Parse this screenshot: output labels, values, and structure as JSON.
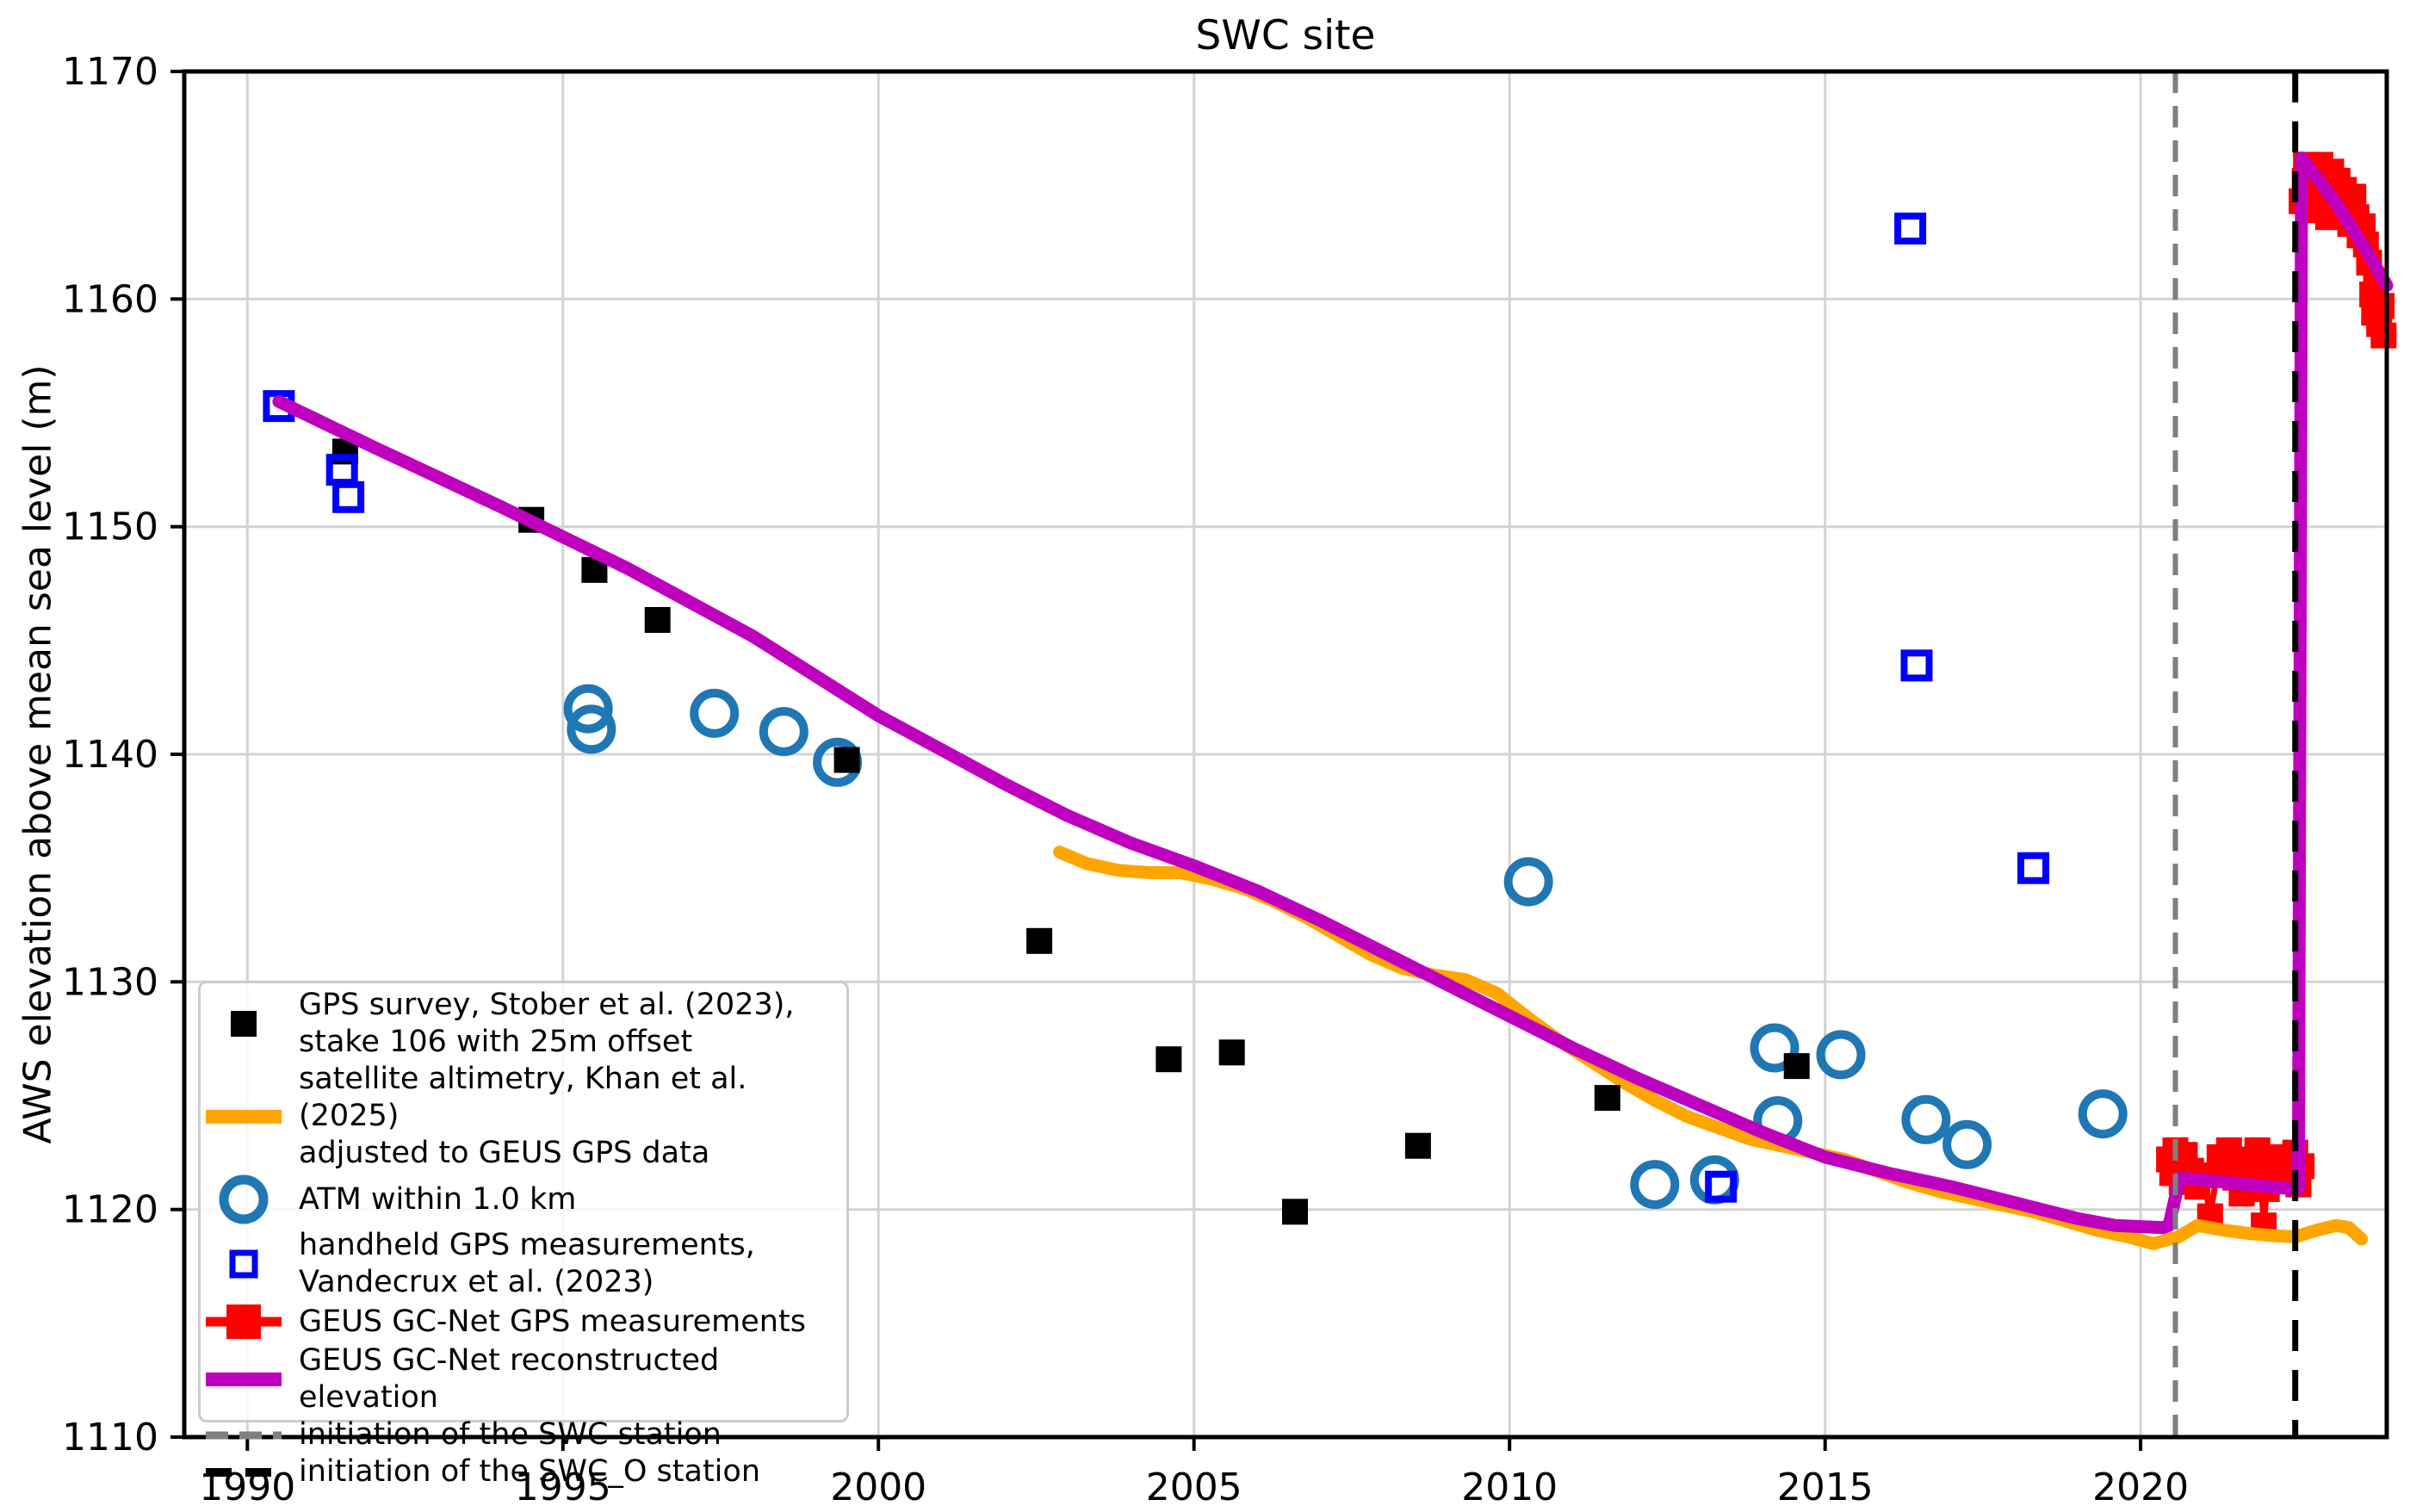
{
  "chart_data": {
    "type": "composite line+scatter",
    "title": "SWC site",
    "xlabel": "",
    "ylabel": "AWS elevation above mean sea level (m)",
    "xlim": [
      1989.0,
      2023.9
    ],
    "ylim": [
      1110,
      1170
    ],
    "xticks": [
      1990,
      1995,
      2000,
      2005,
      2010,
      2015,
      2020
    ],
    "yticks": [
      1110,
      1120,
      1130,
      1140,
      1150,
      1160,
      1170
    ],
    "grid": true,
    "grid_color": "#d3d3d3",
    "legend_position": "lower left",
    "series": [
      {
        "id": "atm",
        "label": "ATM within 1.0 km",
        "type": "scatter",
        "marker": "circle-open",
        "color": "#1f77b4",
        "marker_size": 57,
        "marker_stroke": 10,
        "points": [
          [
            1995.4,
            1142.0
          ],
          [
            1995.45,
            1141.1
          ],
          [
            1997.4,
            1141.8
          ],
          [
            1998.5,
            1141.0
          ],
          [
            1999.35,
            1139.65
          ],
          [
            2010.3,
            1134.4
          ],
          [
            2012.3,
            1121.1
          ],
          [
            2013.25,
            1121.3
          ],
          [
            2014.2,
            1127.1
          ],
          [
            2014.25,
            1123.9
          ],
          [
            2015.25,
            1126.8
          ],
          [
            2016.6,
            1123.95
          ],
          [
            2017.25,
            1122.85
          ],
          [
            2019.4,
            1124.2
          ]
        ]
      },
      {
        "id": "gcnet_gps",
        "label": "GEUS GC-Net GPS measurements",
        "type": "line+scatter",
        "marker": "square-filled",
        "color": "#ff0000",
        "line_width": 7,
        "marker_size": 30,
        "points": [
          [
            2020.45,
            1122.2
          ],
          [
            2020.5,
            1121.6
          ],
          [
            2020.55,
            1122.6
          ],
          [
            2020.6,
            1121.9
          ],
          [
            2020.65,
            1121.2
          ],
          [
            2020.7,
            1122.4
          ],
          [
            2020.8,
            1121.7
          ],
          [
            2020.9,
            1121.0
          ],
          [
            2021.0,
            1121.5
          ],
          [
            2021.1,
            1119.7
          ],
          [
            2021.25,
            1122.3
          ],
          [
            2021.3,
            1121.8
          ],
          [
            2021.4,
            1122.6
          ],
          [
            2021.45,
            1122.0
          ],
          [
            2021.5,
            1121.4
          ],
          [
            2021.6,
            1120.7
          ],
          [
            2021.7,
            1122.2
          ],
          [
            2021.85,
            1122.6
          ],
          [
            2021.9,
            1121.8
          ],
          [
            2021.95,
            1119.3
          ],
          [
            2022.0,
            1120.9
          ],
          [
            2022.1,
            1122.3
          ],
          [
            2022.2,
            1121.7
          ],
          [
            2022.3,
            1122.1
          ],
          [
            2022.4,
            1121.4
          ],
          [
            2022.45,
            1122.5
          ],
          [
            2022.5,
            1121.1
          ],
          [
            2022.55,
            1121.9
          ],
          [
            2022.55,
            1164.3
          ],
          [
            2022.6,
            1165.2
          ],
          [
            2022.62,
            1165.9
          ],
          [
            2022.67,
            1163.9
          ],
          [
            2022.72,
            1165.4
          ],
          [
            2022.78,
            1164.4
          ],
          [
            2022.85,
            1165.9
          ],
          [
            2022.92,
            1165.0
          ],
          [
            2022.97,
            1163.6
          ],
          [
            2023.02,
            1165.6
          ],
          [
            2023.07,
            1164.5
          ],
          [
            2023.12,
            1165.2
          ],
          [
            2023.17,
            1163.8
          ],
          [
            2023.22,
            1164.8
          ],
          [
            2023.27,
            1164.0
          ],
          [
            2023.32,
            1163.3
          ],
          [
            2023.37,
            1164.5
          ],
          [
            2023.42,
            1163.6
          ],
          [
            2023.47,
            1162.8
          ],
          [
            2023.52,
            1163.2
          ],
          [
            2023.57,
            1162.4
          ],
          [
            2023.62,
            1161.6
          ],
          [
            2023.67,
            1160.2
          ],
          [
            2023.7,
            1159.4
          ],
          [
            2023.73,
            1160.8
          ],
          [
            2023.78,
            1158.9
          ],
          [
            2023.82,
            1159.7
          ],
          [
            2023.85,
            1158.4
          ]
        ]
      },
      {
        "id": "altimetry",
        "label": "satellite altimetry, Khan et al. (2025)\nadjusted to GEUS GPS data",
        "type": "line",
        "color": "#ffa500",
        "line_width": 15,
        "points": [
          [
            2002.87,
            1135.7
          ],
          [
            2003.3,
            1135.2
          ],
          [
            2003.8,
            1134.9
          ],
          [
            2004.3,
            1134.8
          ],
          [
            2004.8,
            1134.8
          ],
          [
            2005.3,
            1134.5
          ],
          [
            2005.8,
            1134.1
          ],
          [
            2006.3,
            1133.5
          ],
          [
            2006.8,
            1132.8
          ],
          [
            2007.3,
            1132.0
          ],
          [
            2007.8,
            1131.2
          ],
          [
            2008.3,
            1130.6
          ],
          [
            2008.8,
            1130.3
          ],
          [
            2009.3,
            1130.1
          ],
          [
            2009.8,
            1129.5
          ],
          [
            2010.3,
            1128.4
          ],
          [
            2010.8,
            1127.4
          ],
          [
            2011.3,
            1126.5
          ],
          [
            2011.8,
            1125.6
          ],
          [
            2012.3,
            1124.8
          ],
          [
            2012.8,
            1124.1
          ],
          [
            2013.3,
            1123.6
          ],
          [
            2013.8,
            1123.1
          ],
          [
            2014.3,
            1122.8
          ],
          [
            2014.8,
            1122.5
          ],
          [
            2015.3,
            1122.2
          ],
          [
            2015.8,
            1121.7
          ],
          [
            2016.3,
            1121.2
          ],
          [
            2016.8,
            1120.8
          ],
          [
            2017.3,
            1120.5
          ],
          [
            2017.8,
            1120.2
          ],
          [
            2018.3,
            1119.9
          ],
          [
            2018.8,
            1119.5
          ],
          [
            2019.3,
            1119.1
          ],
          [
            2019.8,
            1118.8
          ],
          [
            2020.2,
            1118.5
          ],
          [
            2020.6,
            1118.8
          ],
          [
            2020.9,
            1119.3
          ],
          [
            2021.3,
            1119.1
          ],
          [
            2021.7,
            1118.95
          ],
          [
            2022.1,
            1118.85
          ],
          [
            2022.45,
            1118.8
          ],
          [
            2022.8,
            1119.1
          ],
          [
            2023.1,
            1119.3
          ],
          [
            2023.3,
            1119.2
          ],
          [
            2023.5,
            1118.7
          ]
        ]
      },
      {
        "id": "stober",
        "label": "GPS survey, Stober et al. (2023),\nstake 106 with 25m offset",
        "type": "scatter",
        "marker": "square-filled",
        "color": "#000000",
        "marker_size": 30,
        "points": [
          [
            1991.55,
            1153.3
          ],
          [
            1994.5,
            1150.3
          ],
          [
            1995.5,
            1148.1
          ],
          [
            1996.5,
            1145.9
          ],
          [
            1999.5,
            1139.75
          ],
          [
            2002.55,
            1131.8
          ],
          [
            2004.6,
            1126.6
          ],
          [
            2005.6,
            1126.9
          ],
          [
            2006.6,
            1119.9
          ],
          [
            2008.55,
            1122.8
          ],
          [
            2011.55,
            1124.9
          ],
          [
            2014.55,
            1126.3
          ]
        ]
      },
      {
        "id": "handheld",
        "label": "handheld GPS measurements,\nVandecrux et al. (2023)",
        "type": "scatter",
        "marker": "square-open",
        "color": "#0000ff",
        "marker_size": 29,
        "marker_stroke": 8,
        "points": [
          [
            1990.5,
            1155.3
          ],
          [
            1991.5,
            1152.5
          ],
          [
            1991.6,
            1151.3
          ],
          [
            2013.35,
            1121.0
          ],
          [
            2016.35,
            1163.1
          ],
          [
            2016.45,
            1143.9
          ],
          [
            2018.3,
            1135.0
          ]
        ]
      },
      {
        "id": "reconstructed",
        "label": "GEUS GC-Net reconstructed elevation",
        "type": "line",
        "color": "#bf00bf",
        "line_width": 15,
        "points": [
          [
            1990.5,
            1155.5
          ],
          [
            1992,
            1153.5
          ],
          [
            1994,
            1150.9
          ],
          [
            1996,
            1148.2
          ],
          [
            1998,
            1145.2
          ],
          [
            2000,
            1141.7
          ],
          [
            2001,
            1140.2
          ],
          [
            2002,
            1138.7
          ],
          [
            2003,
            1137.3
          ],
          [
            2004,
            1136.1
          ],
          [
            2005,
            1135.1
          ],
          [
            2006,
            1134.0
          ],
          [
            2007,
            1132.7
          ],
          [
            2008,
            1131.3
          ],
          [
            2009,
            1129.9
          ],
          [
            2010,
            1128.5
          ],
          [
            2011,
            1127.1
          ],
          [
            2012,
            1125.8
          ],
          [
            2013,
            1124.6
          ],
          [
            2014,
            1123.4
          ],
          [
            2015,
            1122.3
          ],
          [
            2016,
            1121.6
          ],
          [
            2017,
            1121.0
          ],
          [
            2018,
            1120.3
          ],
          [
            2019,
            1119.6
          ],
          [
            2019.6,
            1119.3
          ],
          [
            2020.35,
            1119.2
          ],
          [
            2020.45,
            1119.3
          ],
          [
            2020.62,
            1121.4
          ],
          [
            2021.5,
            1121.15
          ],
          [
            2022.42,
            1120.9
          ],
          [
            2022.5,
            1120.9
          ],
          [
            2022.55,
            1166.2
          ],
          [
            2022.8,
            1165.3
          ],
          [
            2023.1,
            1164.2
          ],
          [
            2023.4,
            1162.9
          ],
          [
            2023.65,
            1161.8
          ],
          [
            2023.9,
            1160.6
          ]
        ]
      },
      {
        "id": "swc_init",
        "label": "initiation of the SWC station",
        "type": "vline",
        "color": "#7f7f7f",
        "line_width": 6,
        "dash": [
          25,
          15
        ],
        "x": 2020.55
      },
      {
        "id": "swc_o_init",
        "label": "initiation of the SWC_O station",
        "type": "vline",
        "color": "#000000",
        "line_width": 7,
        "dash": [
          36,
          22
        ],
        "x": 2022.45
      }
    ]
  },
  "legend": {
    "entries": [
      {
        "id": "stober",
        "label": "GPS survey, Stober et al. (2023),\nstake 106 with 25m offset"
      },
      {
        "id": "altimetry",
        "label": "satellite altimetry, Khan et al. (2025)\nadjusted to GEUS GPS data"
      },
      {
        "id": "atm",
        "label": "ATM within 1.0 km"
      },
      {
        "id": "handheld",
        "label": "handheld GPS measurements,\nVandecrux et al. (2023)"
      },
      {
        "id": "gcnet_gps",
        "label": "GEUS GC-Net GPS measurements"
      },
      {
        "id": "reconstructed",
        "label": "GEUS GC-Net reconstructed elevation"
      },
      {
        "id": "swc_init",
        "label": "initiation of the SWC station"
      },
      {
        "id": "swc_o_init",
        "label": "initiation of the SWC_O station"
      }
    ]
  }
}
